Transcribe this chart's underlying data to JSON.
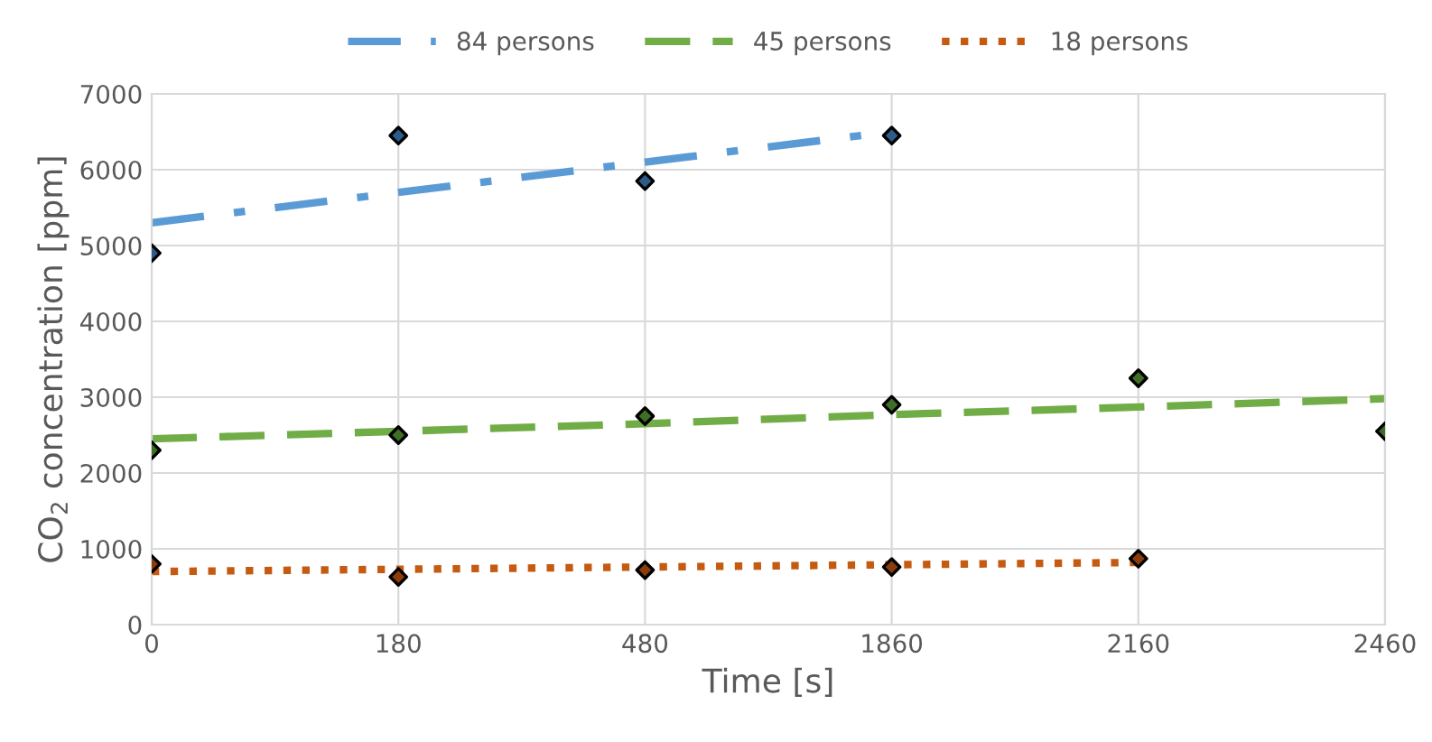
{
  "chart_data": {
    "type": "line",
    "xlabel": "Time [s]",
    "ylabel": "CO$_{2}$ concentration [ppm]",
    "categories": [
      "0",
      "180",
      "480",
      "1860",
      "2160",
      "2460"
    ],
    "series": [
      {
        "name": "84 persons",
        "line_style": "dashdot",
        "color": "#5b9bd5",
        "values": [
          5300,
          5700,
          6100,
          6500,
          null,
          null
        ]
      },
      {
        "name": "45 persons",
        "line_style": "dashed",
        "color": "#70ad47",
        "values": [
          2450,
          2550,
          2650,
          2770,
          2870,
          2980
        ]
      },
      {
        "name": "18 persons",
        "line_style": "dotted",
        "color": "#c55a11",
        "values": [
          700,
          730,
          760,
          790,
          820,
          null
        ]
      },
      {
        "type": "scatter",
        "marker": "diamond",
        "color": "#2e5c8a",
        "values": [
          4900,
          6450,
          5850,
          6450,
          null,
          null
        ]
      },
      {
        "type": "scatter",
        "marker": "diamond",
        "color": "#3f6e26",
        "values": [
          2300,
          2500,
          2750,
          2900,
          3250,
          2550
        ]
      },
      {
        "type": "scatter",
        "marker": "diamond",
        "color": "#8a3d0b",
        "values": [
          800,
          630,
          720,
          760,
          870,
          null
        ]
      }
    ],
    "ylim": [
      0,
      7000
    ],
    "yticks": [
      0,
      1000,
      2000,
      3000,
      4000,
      5000,
      6000,
      7000
    ],
    "grid": true,
    "legend": "top"
  }
}
